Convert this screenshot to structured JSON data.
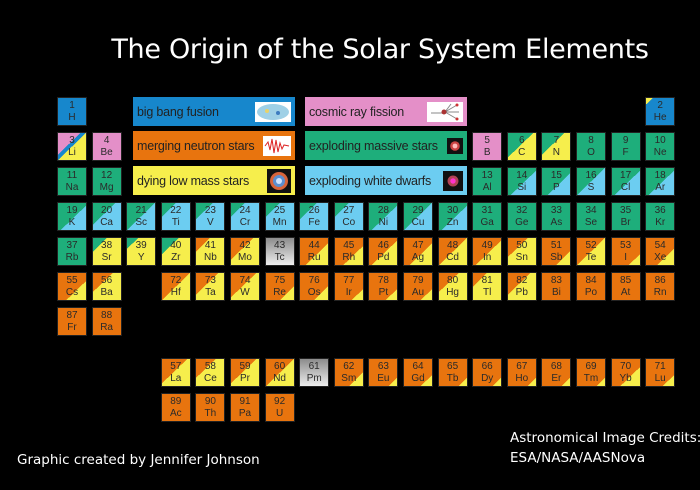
{
  "title": "The Origin of the Solar System Elements",
  "colors": {
    "B": "#1787cc",
    "P": "#e48fc8",
    "O": "#e8740e",
    "G": "#1eae7b",
    "Y": "#f6ee4c",
    "L": "#6ccdf1",
    "X": "#b9b9b9"
  },
  "legend": [
    {
      "label": "big bang fusion",
      "color": "B",
      "icon": "cmb-map-icon"
    },
    {
      "label": "cosmic ray fission",
      "color": "P",
      "icon": "particle-collision-icon"
    },
    {
      "label": "merging neutron stars",
      "color": "O",
      "icon": "gravitational-wave-icon"
    },
    {
      "label": "exploding massive stars",
      "color": "G",
      "icon": "supernova-icon"
    },
    {
      "label": "dying low mass stars",
      "color": "Y",
      "icon": "planetary-nebula-icon"
    },
    {
      "label": "exploding white dwarfs",
      "color": "L",
      "icon": "white-dwarf-remnant-icon"
    }
  ],
  "elements": [
    {
      "z": 1,
      "s": "H",
      "f": "B"
    },
    {
      "z": 2,
      "s": "He",
      "f": "Y:12,B"
    },
    {
      "z": 3,
      "s": "Li",
      "f": "P:40,B:50,Y"
    },
    {
      "z": 4,
      "s": "Be",
      "f": "P"
    },
    {
      "z": 5,
      "s": "B",
      "f": "P"
    },
    {
      "z": 6,
      "s": "C",
      "f": "G:45,Y"
    },
    {
      "z": 7,
      "s": "N",
      "f": "G:40,Y"
    },
    {
      "z": 8,
      "s": "O",
      "f": "G"
    },
    {
      "z": 9,
      "s": "F",
      "f": "G"
    },
    {
      "z": 10,
      "s": "Ne",
      "f": "G"
    },
    {
      "z": 11,
      "s": "Na",
      "f": "G"
    },
    {
      "z": 12,
      "s": "Mg",
      "f": "G"
    },
    {
      "z": 13,
      "s": "Al",
      "f": "G"
    },
    {
      "z": 14,
      "s": "Si",
      "f": "G:55,L"
    },
    {
      "z": 15,
      "s": "P",
      "f": "G:60,L"
    },
    {
      "z": 16,
      "s": "S",
      "f": "G:50,L"
    },
    {
      "z": 17,
      "s": "Cl",
      "f": "G:55,L"
    },
    {
      "z": 18,
      "s": "Ar",
      "f": "G:55,L"
    },
    {
      "z": 19,
      "s": "K",
      "f": "G:55,L"
    },
    {
      "z": 20,
      "s": "Ca",
      "f": "G:40,L"
    },
    {
      "z": 21,
      "s": "Sc",
      "f": "G:50,L"
    },
    {
      "z": 22,
      "s": "Ti",
      "f": "G:25,L"
    },
    {
      "z": 23,
      "s": "V",
      "f": "G:30,L"
    },
    {
      "z": 24,
      "s": "Cr",
      "f": "G:25,L"
    },
    {
      "z": 25,
      "s": "Mn",
      "f": "G:25,L"
    },
    {
      "z": 26,
      "s": "Fe",
      "f": "G:30,L"
    },
    {
      "z": 27,
      "s": "Co",
      "f": "G:25,L"
    },
    {
      "z": 28,
      "s": "Ni",
      "f": "G:55,L"
    },
    {
      "z": 29,
      "s": "Cu",
      "f": "G:50,L"
    },
    {
      "z": 30,
      "s": "Zn",
      "f": "G:55,L"
    },
    {
      "z": 31,
      "s": "Ga",
      "f": "G"
    },
    {
      "z": 32,
      "s": "Ge",
      "f": "G"
    },
    {
      "z": 33,
      "s": "As",
      "f": "G"
    },
    {
      "z": 34,
      "s": "Se",
      "f": "G"
    },
    {
      "z": 35,
      "s": "Br",
      "f": "G"
    },
    {
      "z": 36,
      "s": "Kr",
      "f": "G"
    },
    {
      "z": 37,
      "s": "Rb",
      "f": "G"
    },
    {
      "z": 38,
      "s": "Sr",
      "f": "G:25,Y"
    },
    {
      "z": 39,
      "s": "Y",
      "f": "G:20,Y"
    },
    {
      "z": 40,
      "s": "Zr",
      "f": "G:30,Y"
    },
    {
      "z": 41,
      "s": "Nb",
      "f": "O:25,Y"
    },
    {
      "z": 42,
      "s": "Mo",
      "f": "O:40,Y"
    },
    {
      "z": 43,
      "s": "Tc",
      "f": "X"
    },
    {
      "z": 44,
      "s": "Ru",
      "f": "O:60,Y"
    },
    {
      "z": 45,
      "s": "Rh",
      "f": "O:65,Y"
    },
    {
      "z": 46,
      "s": "Pd",
      "f": "O:55,Y"
    },
    {
      "z": 47,
      "s": "Ag",
      "f": "O:60,Y"
    },
    {
      "z": 48,
      "s": "Cd",
      "f": "O:50,Y"
    },
    {
      "z": 49,
      "s": "In",
      "f": "O:55,Y"
    },
    {
      "z": 50,
      "s": "Sn",
      "f": "O:35,Y"
    },
    {
      "z": 51,
      "s": "Sb",
      "f": "O:75,Y"
    },
    {
      "z": 52,
      "s": "Te",
      "f": "O:50,Y"
    },
    {
      "z": 53,
      "s": "I",
      "f": "O:80,Y"
    },
    {
      "z": 54,
      "s": "Xe",
      "f": "O:70,Y"
    },
    {
      "z": 55,
      "s": "Cs",
      "f": "O:65,Y"
    },
    {
      "z": 56,
      "s": "Ba",
      "f": "O:35,Y"
    },
    {
      "z": 57,
      "s": "La",
      "f": "O:45,Y"
    },
    {
      "z": 58,
      "s": "Ce",
      "f": "O:35,Y"
    },
    {
      "z": 59,
      "s": "Pr",
      "f": "O:45,Y"
    },
    {
      "z": 60,
      "s": "Nd",
      "f": "O:50,Y"
    },
    {
      "z": 61,
      "s": "Pm",
      "f": "X"
    },
    {
      "z": 62,
      "s": "Sm",
      "f": "O:75,Y"
    },
    {
      "z": 63,
      "s": "Eu",
      "f": "O:85,Y"
    },
    {
      "z": 64,
      "s": "Gd",
      "f": "O:80,Y"
    },
    {
      "z": 65,
      "s": "Tb",
      "f": "O:85,Y"
    },
    {
      "z": 66,
      "s": "Dy",
      "f": "O:85,Y"
    },
    {
      "z": 67,
      "s": "Ho",
      "f": "O:85,Y"
    },
    {
      "z": 68,
      "s": "Er",
      "f": "O:85,Y"
    },
    {
      "z": 69,
      "s": "Tm",
      "f": "O:85,Y"
    },
    {
      "z": 70,
      "s": "Yb",
      "f": "O:65,Y"
    },
    {
      "z": 71,
      "s": "Lu",
      "f": "O:80,Y"
    },
    {
      "z": 72,
      "s": "Hf",
      "f": "O:50,Y"
    },
    {
      "z": 73,
      "s": "Ta",
      "f": "O:40,Y"
    },
    {
      "z": 74,
      "s": "W",
      "f": "O:45,Y"
    },
    {
      "z": 75,
      "s": "Re",
      "f": "O:75,Y"
    },
    {
      "z": 76,
      "s": "Os",
      "f": "O:75,Y"
    },
    {
      "z": 77,
      "s": "Ir",
      "f": "O:80,Y"
    },
    {
      "z": 78,
      "s": "Pt",
      "f": "O:80,Y"
    },
    {
      "z": 79,
      "s": "Au",
      "f": "O:80,Y"
    },
    {
      "z": 80,
      "s": "Hg",
      "f": "O:35,Y"
    },
    {
      "z": 81,
      "s": "Tl",
      "f": "O:25,Y"
    },
    {
      "z": 82,
      "s": "Pb",
      "f": "O:40,Y"
    },
    {
      "z": 83,
      "s": "Bi",
      "f": "O"
    },
    {
      "z": 84,
      "s": "Po",
      "f": "O"
    },
    {
      "z": 85,
      "s": "At",
      "f": "O"
    },
    {
      "z": 86,
      "s": "Rn",
      "f": "O"
    },
    {
      "z": 87,
      "s": "Fr",
      "f": "O"
    },
    {
      "z": 88,
      "s": "Ra",
      "f": "O"
    },
    {
      "z": 89,
      "s": "Ac",
      "f": "O"
    },
    {
      "z": 90,
      "s": "Th",
      "f": "O"
    },
    {
      "z": 91,
      "s": "Pa",
      "f": "O"
    },
    {
      "z": 92,
      "s": "U",
      "f": "O"
    }
  ],
  "credits": {
    "author": "Graphic created by Jennifer Johnson",
    "image_credits_line1": "Astronomical Image Credits:",
    "image_credits_line2": "ESA/NASA/AASNova"
  }
}
